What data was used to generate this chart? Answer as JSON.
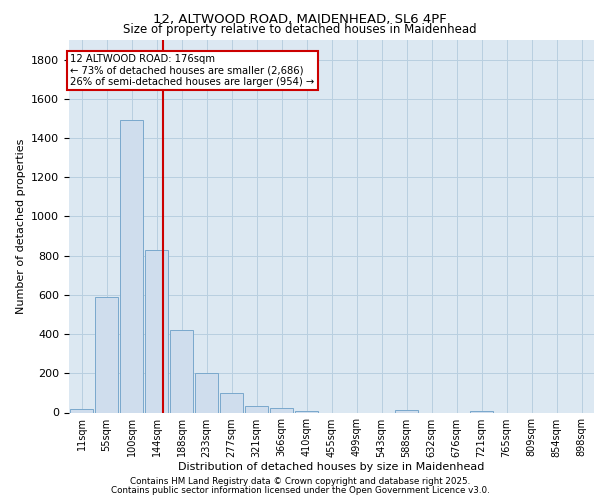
{
  "title_line1": "12, ALTWOOD ROAD, MAIDENHEAD, SL6 4PF",
  "title_line2": "Size of property relative to detached houses in Maidenhead",
  "xlabel": "Distribution of detached houses by size in Maidenhead",
  "ylabel": "Number of detached properties",
  "bar_labels": [
    "11sqm",
    "55sqm",
    "100sqm",
    "144sqm",
    "188sqm",
    "233sqm",
    "277sqm",
    "321sqm",
    "366sqm",
    "410sqm",
    "455sqm",
    "499sqm",
    "543sqm",
    "588sqm",
    "632sqm",
    "676sqm",
    "721sqm",
    "765sqm",
    "809sqm",
    "854sqm",
    "898sqm"
  ],
  "bar_values": [
    20,
    590,
    1490,
    830,
    420,
    200,
    100,
    35,
    25,
    10,
    0,
    0,
    0,
    15,
    0,
    0,
    10,
    0,
    0,
    0,
    0
  ],
  "bar_color": "#cfdded",
  "bar_edgecolor": "#7aa8cc",
  "grid_color": "#b8cfe0",
  "background_color": "#dce8f2",
  "red_line_index": 3.73,
  "annotation_text": "12 ALTWOOD ROAD: 176sqm\n← 73% of detached houses are smaller (2,686)\n26% of semi-detached houses are larger (954) →",
  "annotation_box_color": "white",
  "annotation_border_color": "#cc0000",
  "red_line_color": "#cc0000",
  "ylim": [
    0,
    1900
  ],
  "yticks": [
    0,
    200,
    400,
    600,
    800,
    1000,
    1200,
    1400,
    1600,
    1800
  ],
  "footer_line1": "Contains HM Land Registry data © Crown copyright and database right 2025.",
  "footer_line2": "Contains public sector information licensed under the Open Government Licence v3.0."
}
